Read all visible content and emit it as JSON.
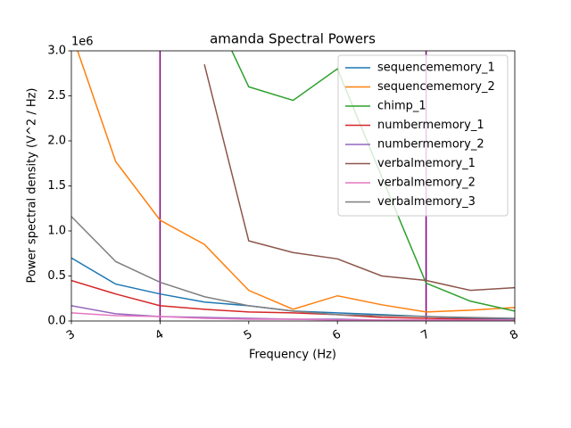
{
  "chart_data": {
    "type": "line",
    "title": "amanda Spectral Powers",
    "xlabel": "Frequency (Hz)",
    "ylabel": "Power spectral density (V^2 / Hz)",
    "y_offset_label": "1e6",
    "x": [
      3,
      3.5,
      4,
      4.5,
      5,
      5.5,
      6,
      6.5,
      7,
      7.5,
      8
    ],
    "xlim": [
      3,
      8
    ],
    "xticks": [
      3,
      4,
      5,
      6,
      7,
      8
    ],
    "ylim": [
      0,
      3
    ],
    "yticks": [
      {
        "value": 0,
        "label": "0.0"
      },
      {
        "value": 0.5,
        "label": "0.5"
      },
      {
        "value": 1,
        "label": "1.0"
      },
      {
        "value": 1.5,
        "label": "1.5"
      },
      {
        "value": 2,
        "label": "2.0"
      },
      {
        "value": 2.5,
        "label": "2.5"
      },
      {
        "value": 3,
        "label": "3.0"
      }
    ],
    "vlines": [
      4,
      7
    ],
    "vline_color": "#800080",
    "legend": "upper right",
    "series": [
      {
        "name": "sequencememory_1",
        "color": "#1f77b4",
        "values": [
          0.7,
          0.41,
          0.3,
          0.21,
          0.17,
          0.11,
          0.09,
          0.07,
          0.05,
          0.03,
          0.02
        ]
      },
      {
        "name": "sequencememory_2",
        "color": "#ff7f0e",
        "values": [
          3.2,
          1.77,
          1.12,
          0.85,
          0.34,
          0.13,
          0.28,
          0.18,
          0.1,
          0.12,
          0.15
        ]
      },
      {
        "name": "chimp_1",
        "color": "#2ca02c",
        "values": [
          null,
          null,
          null,
          3.65,
          2.6,
          2.45,
          2.8,
          1.6,
          0.42,
          0.22,
          0.11
        ]
      },
      {
        "name": "numbermemory_1",
        "color": "#d62728",
        "values": [
          0.45,
          0.3,
          0.17,
          0.13,
          0.1,
          0.09,
          0.07,
          0.04,
          0.03,
          0.02,
          0.01
        ]
      },
      {
        "name": "numbermemory_2",
        "color": "#9467bd",
        "values": [
          0.17,
          0.08,
          0.05,
          0.04,
          0.03,
          0.02,
          0.02,
          0.01,
          0.01,
          0.01,
          0.01
        ]
      },
      {
        "name": "verbalmemory_1",
        "color": "#8c564b",
        "values": [
          null,
          null,
          null,
          2.85,
          0.89,
          0.76,
          0.69,
          0.5,
          0.45,
          0.34,
          0.37
        ]
      },
      {
        "name": "verbalmemory_2",
        "color": "#e377c2",
        "values": [
          0.09,
          0.06,
          0.05,
          0.03,
          0.02,
          0.02,
          0.01,
          0.01,
          0.01,
          0.01,
          0.01
        ]
      },
      {
        "name": "verbalmemory_3",
        "color": "#7f7f7f",
        "values": [
          1.16,
          0.66,
          0.43,
          0.27,
          0.17,
          0.11,
          0.07,
          0.06,
          0.05,
          0.04,
          0.03
        ]
      }
    ]
  }
}
